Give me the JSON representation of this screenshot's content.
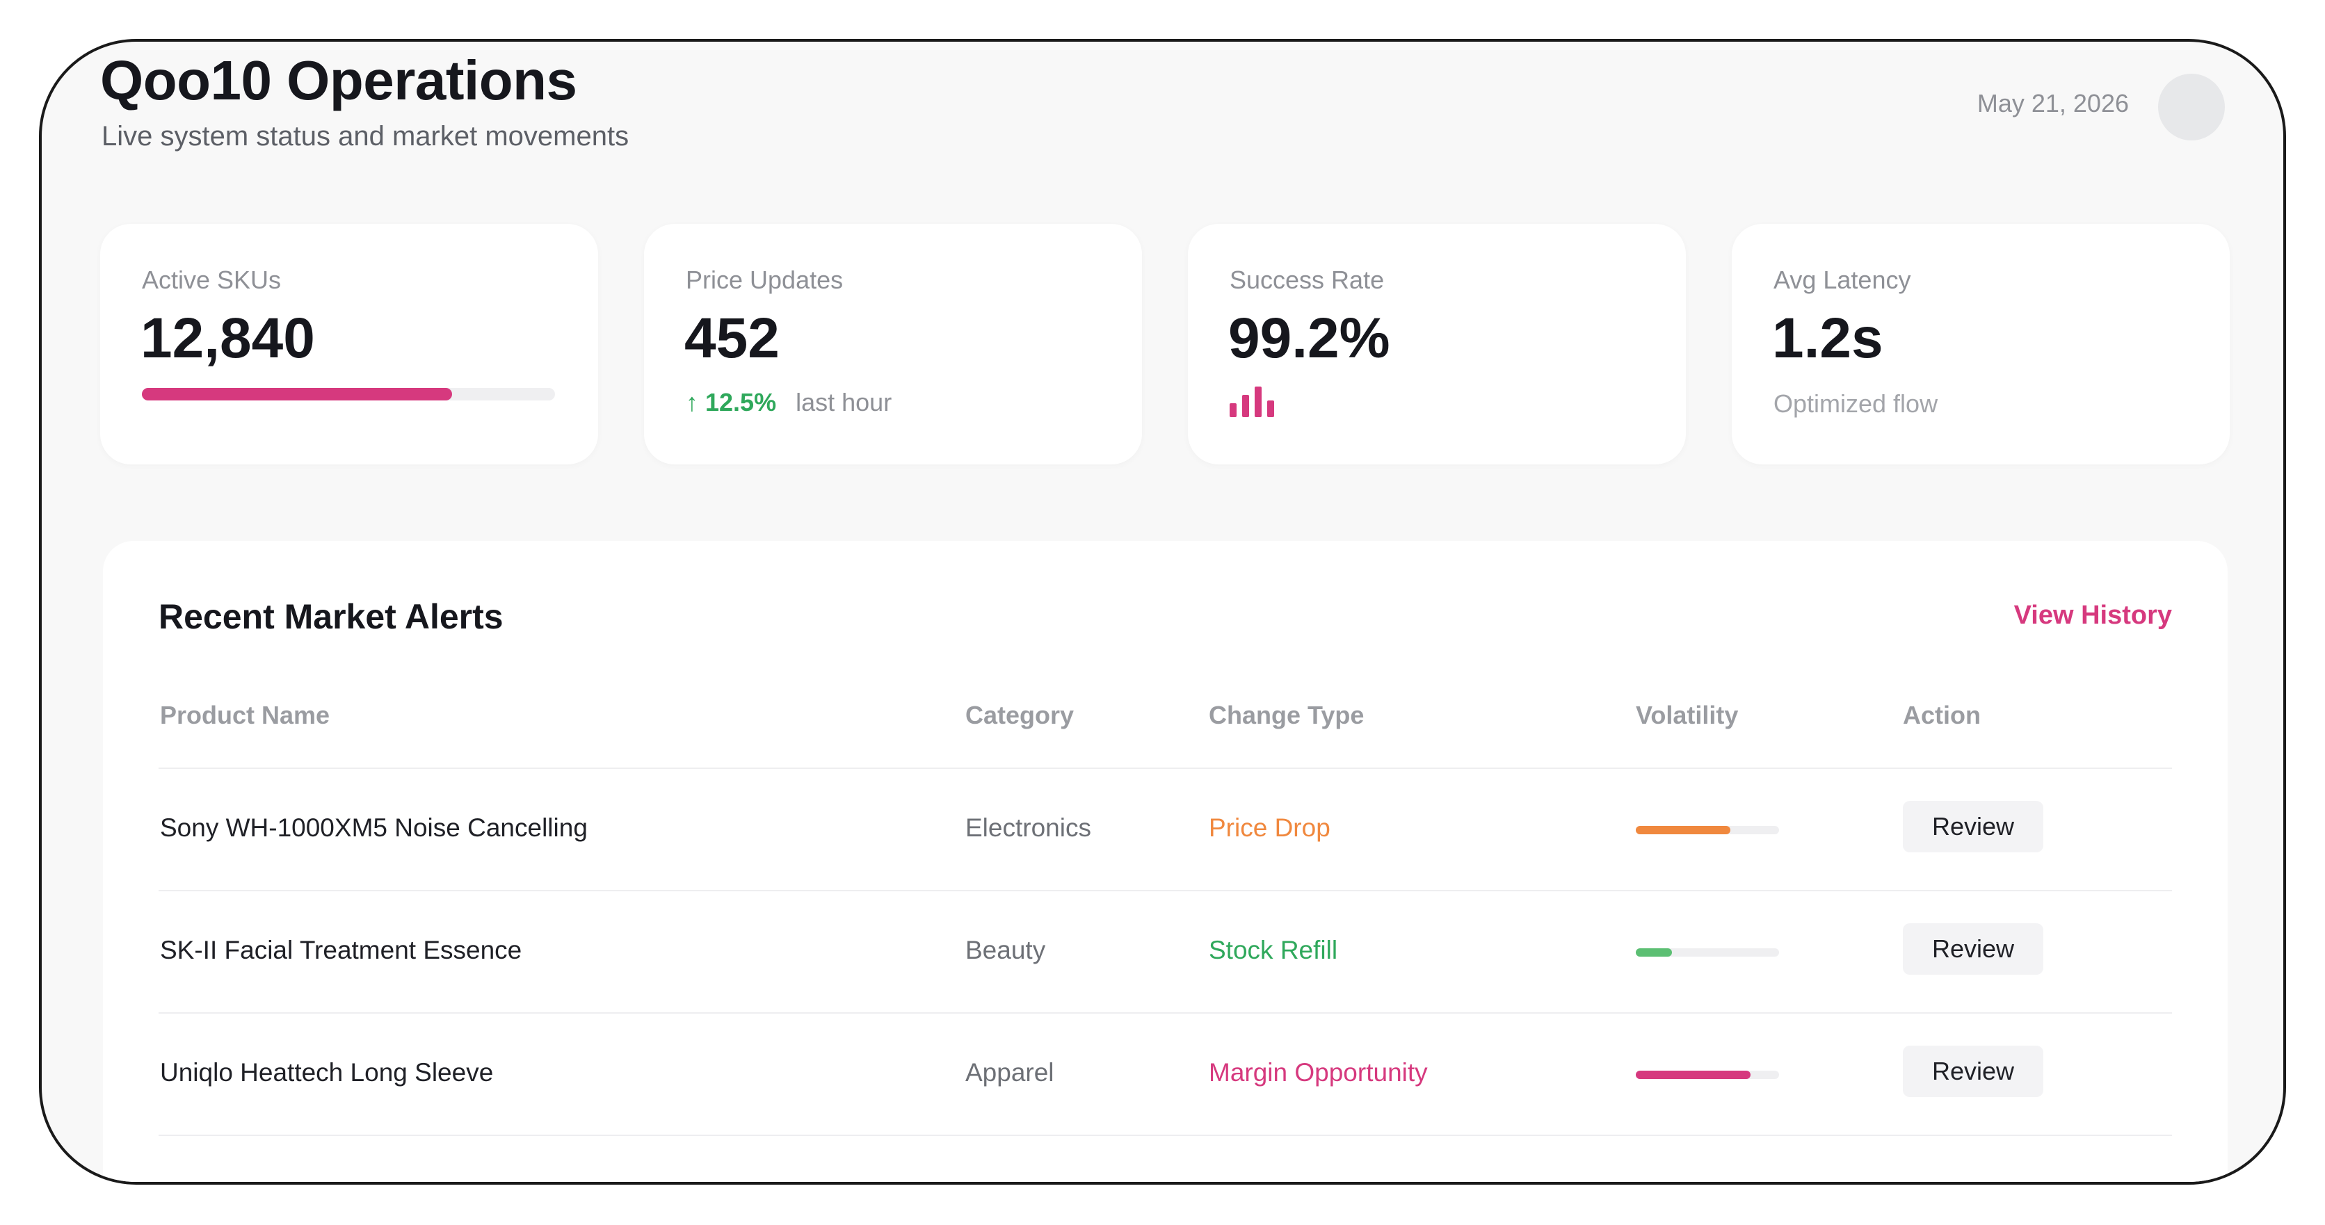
{
  "header": {
    "title": "Qoo10 Operations",
    "subtitle": "Live system status and market movements",
    "date": "May 21, 2026"
  },
  "stats": [
    {
      "label": "Active SKUs",
      "value": "12,840",
      "progress_pct": 75,
      "progress_color": "#d6397e"
    },
    {
      "label": "Price Updates",
      "value": "452",
      "trend_icon": "arrow-up-icon",
      "trend_value": "12.5%",
      "trend_caption": "last hour",
      "trend_color": "#2fa85b"
    },
    {
      "label": "Success Rate",
      "value": "99.2%",
      "mini_bar_levels": [
        0.45,
        0.72,
        1.0,
        0.55
      ],
      "mini_bar_color": "#d6397e"
    },
    {
      "label": "Avg Latency",
      "value": "1.2s",
      "note": "Optimized flow"
    }
  ],
  "alerts": {
    "title": "Recent Market Alerts",
    "link_label": "View History",
    "accent_color": "#d6397e",
    "columns": [
      "Product Name",
      "Category",
      "Change Type",
      "Volatility",
      "Action"
    ],
    "rows": [
      {
        "product": "Sony WH-1000XM5 Noise Cancelling",
        "category": "Electronics",
        "change_type": "Price Drop",
        "change_color": "#f0883e",
        "volatility_pct": 66,
        "volatility_color": "#f0883e",
        "action": "Review"
      },
      {
        "product": "SK-II Facial Treatment Essence",
        "category": "Beauty",
        "change_type": "Stock Refill",
        "change_color": "#2fa85b",
        "volatility_pct": 25,
        "volatility_color": "#5cbf73",
        "action": "Review"
      },
      {
        "product": "Uniqlo Heattech Long Sleeve",
        "category": "Apparel",
        "change_type": "Margin Opportunity",
        "change_color": "#d6397e",
        "volatility_pct": 80,
        "volatility_color": "#d6397e",
        "action": "Review"
      }
    ]
  }
}
